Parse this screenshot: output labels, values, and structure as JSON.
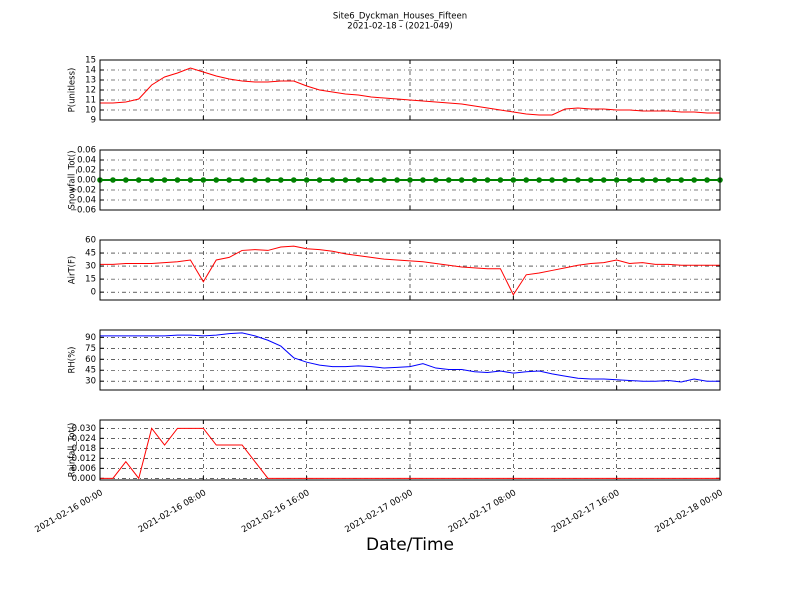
{
  "title": "Site6_Dyckman_Houses_Fifteen",
  "subtitle": "2021-02-18 - (2021-049)",
  "chart_data": {
    "type": "line",
    "x_label": "Date/Time",
    "x": [
      "2021-02-16 00:00",
      "2021-02-16 01:00",
      "2021-02-16 02:00",
      "2021-02-16 03:00",
      "2021-02-16 04:00",
      "2021-02-16 05:00",
      "2021-02-16 06:00",
      "2021-02-16 07:00",
      "2021-02-16 08:00",
      "2021-02-16 09:00",
      "2021-02-16 10:00",
      "2021-02-16 11:00",
      "2021-02-16 12:00",
      "2021-02-16 13:00",
      "2021-02-16 14:00",
      "2021-02-16 15:00",
      "2021-02-16 16:00",
      "2021-02-16 17:00",
      "2021-02-16 18:00",
      "2021-02-16 19:00",
      "2021-02-16 20:00",
      "2021-02-16 21:00",
      "2021-02-16 22:00",
      "2021-02-16 23:00",
      "2021-02-17 00:00",
      "2021-02-17 01:00",
      "2021-02-17 02:00",
      "2021-02-17 03:00",
      "2021-02-17 04:00",
      "2021-02-17 05:00",
      "2021-02-17 06:00",
      "2021-02-17 07:00",
      "2021-02-17 08:00",
      "2021-02-17 09:00",
      "2021-02-17 10:00",
      "2021-02-17 11:00",
      "2021-02-17 12:00",
      "2021-02-17 13:00",
      "2021-02-17 14:00",
      "2021-02-17 15:00",
      "2021-02-17 16:00",
      "2021-02-17 17:00",
      "2021-02-17 18:00",
      "2021-02-17 19:00",
      "2021-02-17 20:00",
      "2021-02-17 21:00",
      "2021-02-17 22:00",
      "2021-02-17 23:00",
      "2021-02-18 00:00"
    ],
    "xlim": [
      "2021-02-16 00:00",
      "2021-02-18 00:00"
    ],
    "xticks": [
      "2021-02-16 00:00",
      "2021-02-16 08:00",
      "2021-02-16 16:00",
      "2021-02-17 00:00",
      "2021-02-17 08:00",
      "2021-02-17 16:00",
      "2021-02-18 00:00"
    ],
    "grid": true,
    "panels": [
      {
        "y_label": "P(unitless)",
        "color": "#ff0000",
        "ylim": [
          9,
          15
        ],
        "yticks": [
          9,
          10,
          11,
          12,
          13,
          14,
          15
        ],
        "values": [
          10.7,
          10.7,
          10.8,
          11.1,
          12.5,
          13.3,
          13.7,
          14.2,
          13.8,
          13.4,
          13.1,
          12.9,
          12.8,
          12.8,
          12.9,
          12.9,
          12.4,
          12.0,
          11.8,
          11.6,
          11.5,
          11.3,
          11.2,
          11.1,
          11.0,
          10.9,
          10.8,
          10.7,
          10.6,
          10.4,
          10.2,
          10.0,
          9.8,
          9.6,
          9.5,
          9.5,
          10.1,
          10.2,
          10.1,
          10.1,
          10.0,
          10.0,
          9.9,
          9.9,
          9.9,
          9.8,
          9.8,
          9.7,
          9.7
        ]
      },
      {
        "y_label": "Snowfall_Tot()",
        "color": "#008000",
        "markers": true,
        "ylim": [
          -0.06,
          0.06
        ],
        "yticks": [
          {
            "value": -0.06,
            "label": "−0.06"
          },
          {
            "value": -0.04,
            "label": "−0.04"
          },
          {
            "value": -0.02,
            "label": "−0.02"
          },
          {
            "value": 0,
            "label": "0.00"
          },
          0.02,
          0.04,
          0.06
        ],
        "values": [
          0,
          0,
          0,
          0,
          0,
          0,
          0,
          0,
          0,
          0,
          0,
          0,
          0,
          0,
          0,
          0,
          0,
          0,
          0,
          0,
          0,
          0,
          0,
          0,
          0,
          0,
          0,
          0,
          0,
          0,
          0,
          0,
          0,
          0,
          0,
          0,
          0,
          0,
          0,
          0,
          0,
          0,
          0,
          0,
          0,
          0,
          0,
          0,
          0
        ]
      },
      {
        "y_label": "AirT(F)",
        "color": "#ff0000",
        "ylim": [
          -9,
          60
        ],
        "yticks": [
          0,
          15,
          30,
          45,
          60
        ],
        "values": [
          32,
          32,
          33,
          33,
          33,
          34,
          35,
          37,
          12,
          37,
          40,
          48,
          49,
          48,
          52,
          53,
          50,
          49,
          47,
          44,
          42,
          40,
          38,
          37,
          36,
          35,
          33,
          31,
          29,
          28,
          27,
          27,
          -3,
          20,
          22,
          25,
          28,
          31,
          33,
          34,
          37,
          33,
          34,
          32,
          32,
          31,
          31,
          31,
          31
        ]
      },
      {
        "y_label": "RH(%)",
        "color": "#0000ff",
        "ylim": [
          18,
          100
        ],
        "yticks": [
          30,
          45,
          60,
          75,
          90
        ],
        "values": [
          92,
          92,
          92,
          92,
          92,
          92,
          93,
          93,
          92,
          93,
          95,
          96,
          92,
          86,
          78,
          62,
          56,
          52,
          50,
          50,
          51,
          50,
          48,
          49,
          50,
          54,
          48,
          46,
          46,
          43,
          42,
          44,
          41,
          43,
          44,
          40,
          37,
          34,
          33,
          33,
          32,
          31,
          30,
          30,
          31,
          29,
          33,
          30,
          30
        ]
      },
      {
        "y_label": "Rainfall_Tot()",
        "color": "#ff0000",
        "ylim": [
          -0.001,
          0.035
        ],
        "yticks": [
          {
            "value": 0,
            "label": "0.000"
          },
          0.006,
          0.012,
          0.018,
          0.024,
          {
            "value": 0.03,
            "label": "0.030"
          }
        ],
        "values": [
          0,
          0,
          0.01,
          0,
          0.03,
          0.02,
          0.03,
          0.03,
          0.03,
          0.02,
          0.02,
          0.02,
          0.01,
          0,
          0,
          0,
          0,
          0,
          0,
          0,
          0,
          0,
          0,
          0,
          0,
          0,
          0,
          0,
          0,
          0,
          0,
          0,
          0,
          0,
          0,
          0,
          0,
          0,
          0,
          0,
          0,
          0,
          0,
          0,
          0,
          0,
          0,
          0,
          0
        ]
      }
    ]
  }
}
